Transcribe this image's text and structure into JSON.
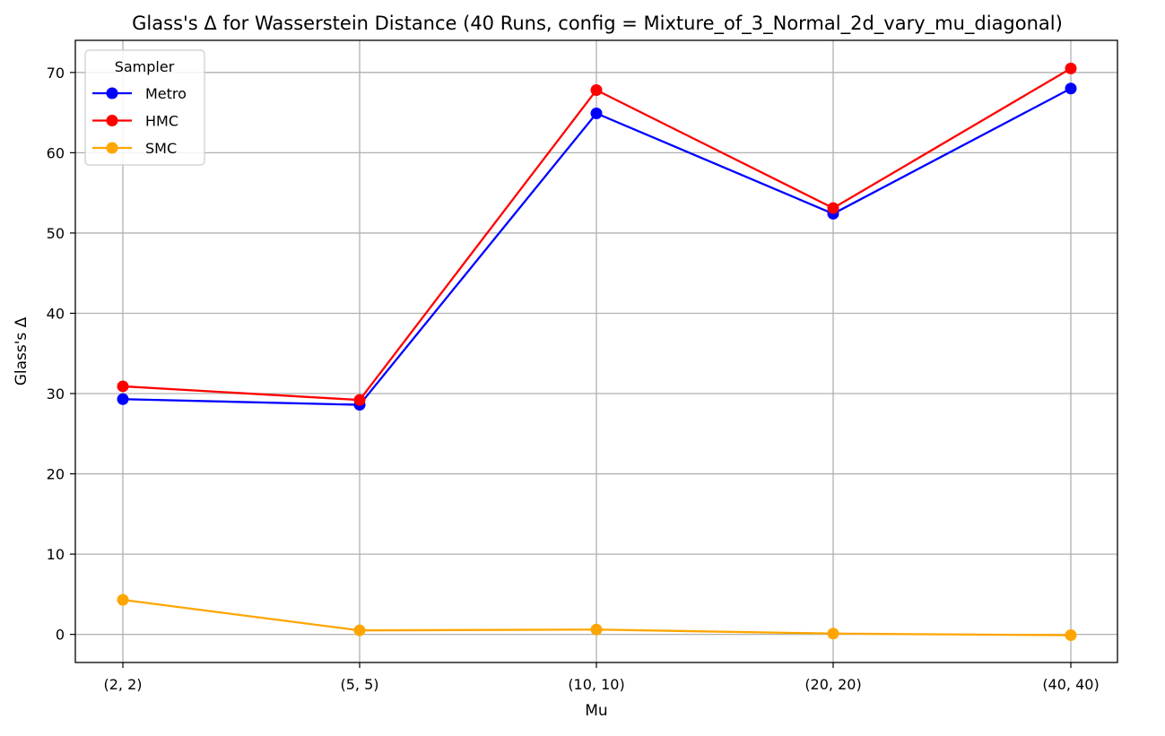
{
  "chart_data": {
    "type": "line",
    "title": "Glass's Δ for Wasserstein Distance (40 Runs, config = Mixture_of_3_Normal_2d_vary_mu_diagonal)",
    "xlabel": "Mu",
    "ylabel": "Glass's Δ",
    "categories": [
      "(2, 2)",
      "(5, 5)",
      "(10, 10)",
      "(20, 20)",
      "(40, 40)"
    ],
    "yticks": [
      0,
      10,
      20,
      30,
      40,
      50,
      60,
      70
    ],
    "ylim": [
      -3.5,
      74
    ],
    "grid": true,
    "legend": {
      "title": "Sampler",
      "placement": "top-left"
    },
    "series": [
      {
        "name": "Metro",
        "color": "#0000ff",
        "values": [
          29.3,
          28.6,
          64.9,
          52.4,
          68.0
        ]
      },
      {
        "name": "HMC",
        "color": "#ff0000",
        "values": [
          30.9,
          29.2,
          67.8,
          53.1,
          70.5
        ]
      },
      {
        "name": "SMC",
        "color": "#ffa500",
        "values": [
          4.3,
          0.5,
          0.6,
          0.1,
          -0.1
        ]
      }
    ]
  }
}
